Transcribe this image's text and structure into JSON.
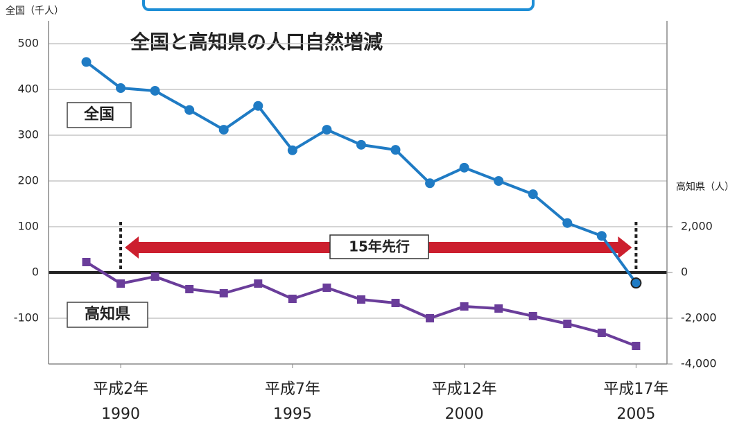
{
  "chart_data": {
    "type": "line",
    "title": "全国と高知県の人口自然増減",
    "y_label": "全国（千人）",
    "y2_label": "高知県（人）",
    "annotations": {
      "national": "全国",
      "kochi": "高知県",
      "lead": "15年先行"
    },
    "x": [
      1989,
      1990,
      1991,
      1992,
      1993,
      1994,
      1995,
      1996,
      1997,
      1998,
      1999,
      2000,
      2001,
      2002,
      2003,
      2004,
      2005
    ],
    "xlim": [
      1987.9,
      2005.9
    ],
    "xticks": [
      {
        "value": 1990,
        "label": "1990",
        "era": "平成2年"
      },
      {
        "value": 1995,
        "label": "1995",
        "era": "平成7年"
      },
      {
        "value": 2000,
        "label": "2000",
        "era": "平成12年"
      },
      {
        "value": 2005,
        "label": "2005",
        "era": "平成17年"
      }
    ],
    "ylim": [
      -200,
      550
    ],
    "yticks": [
      -100,
      0,
      100,
      200,
      300,
      400,
      500
    ],
    "y2lim": [
      -4000,
      11000
    ],
    "y2ticks": [
      {
        "value": -4000,
        "label": "-4,000"
      },
      {
        "value": -2000,
        "label": "-2,000"
      },
      {
        "value": 0,
        "label": "0"
      },
      {
        "value": 2000,
        "label": "2,000"
      }
    ],
    "grid": true,
    "series": [
      {
        "name": "全国",
        "color": "#1f7bc4",
        "marker": "circle",
        "values": [
          460,
          403,
          397,
          355,
          312,
          364,
          267,
          312,
          279,
          268,
          195,
          229,
          200,
          171,
          108,
          80,
          -23
        ]
      },
      {
        "name": "高知県",
        "color": "#6a3d9a",
        "marker": "square",
        "axis": "y2",
        "values": [
          455,
          -485,
          -180,
          -727,
          -909,
          -485,
          -1152,
          -667,
          -1182,
          -1333,
          -2000,
          -1485,
          -1576,
          -1909,
          -2242,
          -2636,
          -3212
        ]
      }
    ]
  }
}
